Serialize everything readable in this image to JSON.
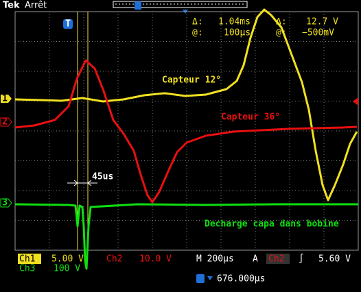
{
  "header": {
    "brand": "Tek",
    "status": "Arrêt"
  },
  "readouts": {
    "delta_label_1": "Δ:",
    "delta_time": "1.04ms",
    "delta_label_2": "Δ:",
    "delta_volt": "12.7 V",
    "at_label_1": "@:",
    "at_time": "100µs",
    "at_label_2": "@:",
    "at_volt": "−500mV"
  },
  "markers": {
    "trigger": "T",
    "ch1": "1",
    "ch2": "2",
    "ch3": "3"
  },
  "annotations": {
    "capteur_12": "Capteur 12°",
    "capteur_36": "Capteur 36°",
    "delay": "45us",
    "decharge": "Decharge capa dans bobine"
  },
  "footer": {
    "ch1_name": "Ch1",
    "ch1_scale": "5.00 V",
    "ch2_name": "Ch2",
    "ch2_scale": "10.0 V",
    "timebase": "M 200µs",
    "trigger_mode": "A",
    "trigger_source": "Ch2",
    "trigger_slope": "∫",
    "trigger_level": "5.60 V",
    "ch3_name": "Ch3",
    "ch3_scale": "100 V",
    "trigger_position": "676.000µs"
  }
}
